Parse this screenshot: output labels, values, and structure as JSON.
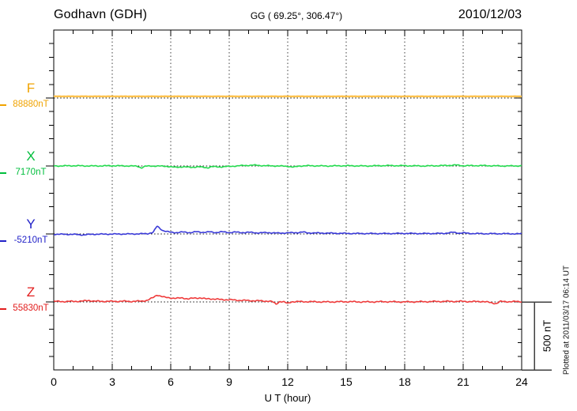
{
  "header": {
    "station": "Godhavn (GDH)",
    "coords": "GG ( 69.25°, 306.47°)",
    "date": "2010/12/03"
  },
  "footer": {
    "plotted_at": "Plotted at 2011/03/17 06:14 UT"
  },
  "scale_bar": {
    "label": "500 nT",
    "value_nT": 500
  },
  "chart_data": {
    "type": "line",
    "title": "Godhavn (GDH) magnetogram",
    "subtitle": "GG ( 69.25°, 306.47°) 2010/12/03",
    "xlabel": "U T (hour)",
    "x_range": [
      0,
      24
    ],
    "x_major_ticks": [
      0,
      3,
      6,
      9,
      12,
      15,
      18,
      21,
      24
    ],
    "x_minor_step_hours": 1,
    "y_division_nT": 500,
    "y_minor_step_nT": 100,
    "grid": "vertical dotted lines every 3 hours; dotted horizontal baseline per component",
    "legend_position": "left",
    "series": [
      {
        "name": "F",
        "baseline_label": "88880nT",
        "baseline_nT": 88880,
        "color": "#F0A300",
        "line_color": "#FFC24D",
        "noise_nT": 1,
        "offsets_nT": [
          [
            0,
            12
          ],
          [
            24,
            12
          ]
        ]
      },
      {
        "name": "X",
        "baseline_label": "7170nT",
        "baseline_nT": 7170,
        "color": "#00BE3C",
        "line_color": "#23DB4E",
        "noise_nT": 4,
        "offsets_nT": [
          [
            0,
            0
          ],
          [
            1,
            2
          ],
          [
            2,
            0
          ],
          [
            3,
            2
          ],
          [
            4,
            0
          ],
          [
            4.3,
            -2
          ],
          [
            4.5,
            -14
          ],
          [
            4.7,
            -2
          ],
          [
            5,
            0
          ],
          [
            5.8,
            -2
          ],
          [
            6.2,
            -10
          ],
          [
            6.6,
            -6
          ],
          [
            7,
            -10
          ],
          [
            7.4,
            -6
          ],
          [
            7.9,
            -13
          ],
          [
            8.1,
            -5
          ],
          [
            8.5,
            -7
          ],
          [
            9,
            -3
          ],
          [
            9.8,
            4
          ],
          [
            10.3,
            6
          ],
          [
            10.8,
            2
          ],
          [
            11.5,
            0
          ],
          [
            12,
            -2
          ],
          [
            12.3,
            -9
          ],
          [
            12.6,
            0
          ],
          [
            13,
            2
          ],
          [
            14,
            0
          ],
          [
            15,
            2
          ],
          [
            16,
            0
          ],
          [
            17,
            3
          ],
          [
            18,
            2
          ],
          [
            19,
            0
          ],
          [
            20,
            3
          ],
          [
            20.6,
            7
          ],
          [
            21,
            2
          ],
          [
            22,
            3
          ],
          [
            23,
            0
          ],
          [
            24,
            1
          ]
        ]
      },
      {
        "name": "Y",
        "baseline_label": "-5210nT",
        "baseline_nT": -5210,
        "color": "#2222C8",
        "line_color": "#3A3AD8",
        "noise_nT": 4,
        "offsets_nT": [
          [
            0,
            -2
          ],
          [
            1,
            -3
          ],
          [
            1.5,
            -7
          ],
          [
            2,
            -2
          ],
          [
            3,
            -1
          ],
          [
            4,
            0
          ],
          [
            4.8,
            2
          ],
          [
            5.1,
            12
          ],
          [
            5.3,
            58
          ],
          [
            5.45,
            40
          ],
          [
            5.6,
            25
          ],
          [
            5.8,
            18
          ],
          [
            6,
            12
          ],
          [
            6.3,
            10
          ],
          [
            6.6,
            14
          ],
          [
            7,
            10
          ],
          [
            7.3,
            16
          ],
          [
            7.6,
            12
          ],
          [
            8,
            15
          ],
          [
            8.3,
            10
          ],
          [
            8.6,
            16
          ],
          [
            9,
            10
          ],
          [
            9.3,
            14
          ],
          [
            9.6,
            10
          ],
          [
            10,
            12
          ],
          [
            10.5,
            8
          ],
          [
            11,
            10
          ],
          [
            11.5,
            6
          ],
          [
            12,
            8
          ],
          [
            12.5,
            10
          ],
          [
            12.8,
            14
          ],
          [
            13,
            8
          ],
          [
            14,
            6
          ],
          [
            15,
            4
          ],
          [
            16,
            3
          ],
          [
            17,
            3
          ],
          [
            18,
            4
          ],
          [
            19,
            3
          ],
          [
            20,
            4
          ],
          [
            20.5,
            12
          ],
          [
            20.8,
            6
          ],
          [
            21,
            8
          ],
          [
            21.3,
            4
          ],
          [
            22,
            2
          ],
          [
            23,
            2
          ],
          [
            24,
            1
          ]
        ]
      },
      {
        "name": "Z",
        "baseline_label": "55830nT",
        "baseline_nT": 55830,
        "color": "#E21D1D",
        "line_color": "#EF3B3B",
        "noise_nT": 5,
        "offsets_nT": [
          [
            0,
            4
          ],
          [
            0.5,
            3
          ],
          [
            1,
            4
          ],
          [
            1.5,
            6
          ],
          [
            1.8,
            11
          ],
          [
            2.1,
            5
          ],
          [
            3,
            4
          ],
          [
            3.5,
            5
          ],
          [
            4,
            4
          ],
          [
            4.5,
            6
          ],
          [
            4.8,
            12
          ],
          [
            5.1,
            32
          ],
          [
            5.3,
            52
          ],
          [
            5.5,
            42
          ],
          [
            5.7,
            33
          ],
          [
            6,
            30
          ],
          [
            6.3,
            26
          ],
          [
            6.6,
            30
          ],
          [
            6.9,
            22
          ],
          [
            7.2,
            28
          ],
          [
            7.5,
            30
          ],
          [
            7.8,
            22
          ],
          [
            8,
            24
          ],
          [
            8.5,
            18
          ],
          [
            9,
            16
          ],
          [
            9.5,
            12
          ],
          [
            10,
            10
          ],
          [
            10.5,
            8
          ],
          [
            11,
            6
          ],
          [
            11.2,
            2
          ],
          [
            11.4,
            -16
          ],
          [
            11.6,
            4
          ],
          [
            11.8,
            0
          ],
          [
            12,
            -12
          ],
          [
            12.2,
            2
          ],
          [
            13,
            2
          ],
          [
            14,
            0
          ],
          [
            15,
            2
          ],
          [
            16,
            0
          ],
          [
            17,
            2
          ],
          [
            18,
            0
          ],
          [
            19,
            2
          ],
          [
            20,
            4
          ],
          [
            21,
            4
          ],
          [
            21.5,
            2
          ],
          [
            22,
            4
          ],
          [
            22.7,
            -12
          ],
          [
            22.9,
            3
          ],
          [
            23.5,
            2
          ],
          [
            24,
            3
          ]
        ]
      }
    ]
  }
}
